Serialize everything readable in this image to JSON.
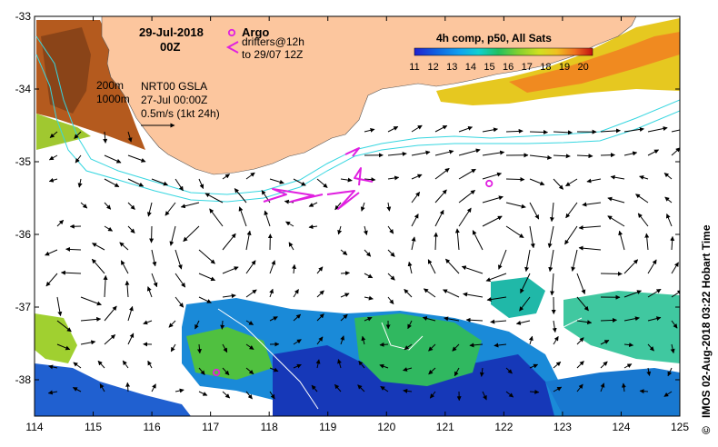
{
  "map": {
    "date": "29-Jul-2018",
    "time": "00Z",
    "depth_labels": [
      "200m",
      "1000m"
    ],
    "product": "NRT00 GSLA",
    "product_date": "27-Jul 00:00Z",
    "velocity_scale": "0.5m/s (1kt 24h)",
    "legend_argo": "Argo",
    "legend_drifters_1": "drifters@12h",
    "legend_drifters_2": "to 29/07 12Z",
    "sst_title": "4h comp, p50, All Sats",
    "credit": "IMOS 02-Aug-2018 03:22 Hobart Time",
    "copyright": "©",
    "colors": {
      "land": "#fcc69e",
      "contour": "#36d6e0",
      "argo": "#e020e0",
      "drifter": "#e020e0"
    },
    "icons": [
      "argo-float-icon",
      "drifter-track-icon"
    ]
  },
  "chart_data": {
    "type": "map",
    "xlim": [
      114,
      125
    ],
    "ylim": [
      -38.5,
      -33
    ],
    "x_ticks": [
      "114",
      "115",
      "116",
      "117",
      "118",
      "119",
      "120",
      "121",
      "122",
      "123",
      "124",
      "125"
    ],
    "y_ticks": [
      "-33",
      "-34",
      "-35",
      "-36",
      "-37",
      "-38"
    ],
    "colorbar": {
      "label": "4h comp, p50, All Sats",
      "ticks": [
        "11",
        "12",
        "13",
        "14",
        "15",
        "16",
        "17",
        "18",
        "19",
        "20"
      ],
      "range": [
        11,
        20.5
      ],
      "colors": [
        "#2020d0",
        "#1060e0",
        "#10a0f0",
        "#10d0d0",
        "#20c060",
        "#80d030",
        "#d0e020",
        "#f0c020",
        "#f07020",
        "#c01010"
      ]
    },
    "argo_floats": [
      {
        "lon": 121.75,
        "lat": -35.3
      },
      {
        "lon": 117.1,
        "lat": -37.9
      }
    ]
  }
}
